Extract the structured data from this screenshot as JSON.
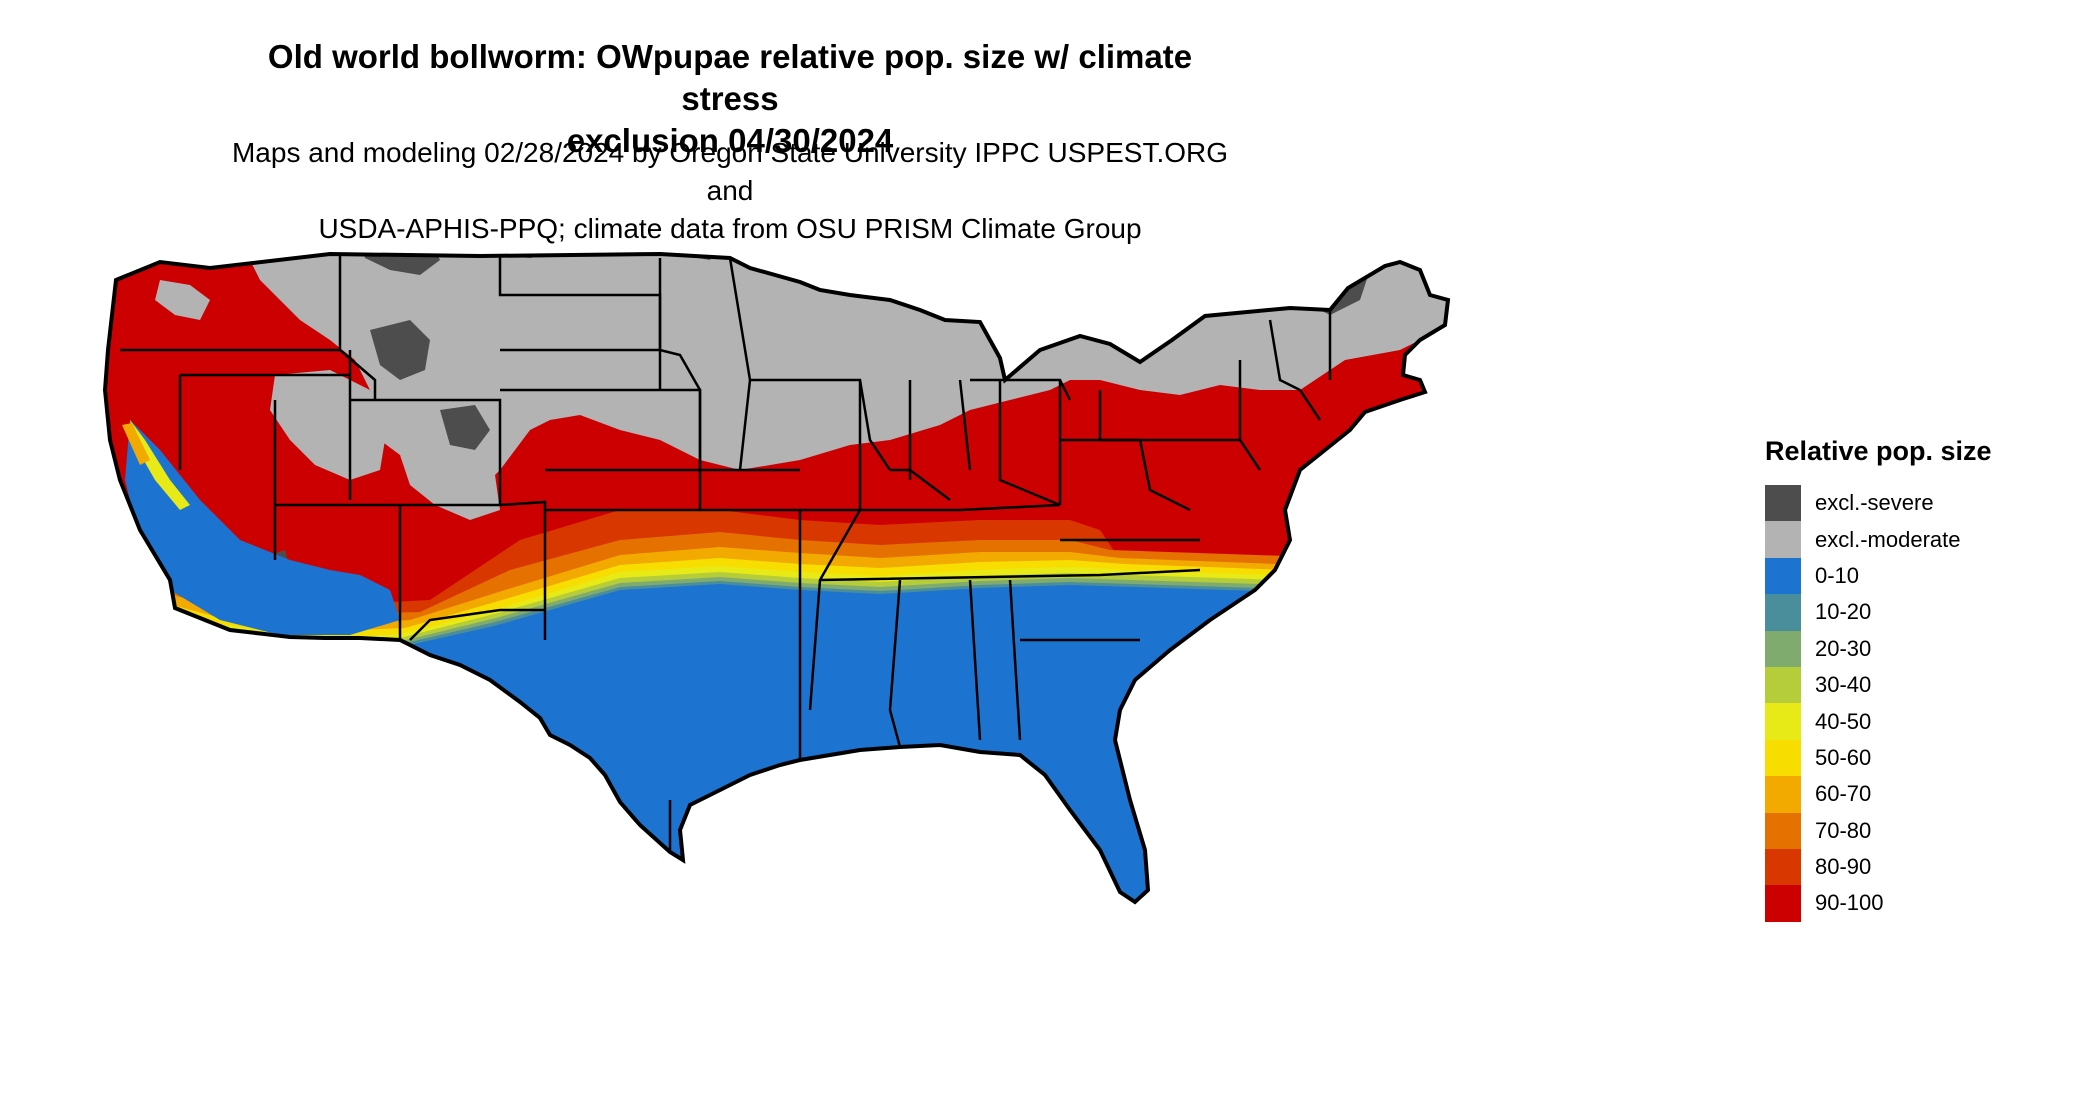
{
  "title": {
    "line1": "Old world bollworm: OWpupae relative pop. size w/ climate stress",
    "line2": "exclusion 04/30/2024"
  },
  "subtitle": {
    "line1": "Maps and modeling 02/28/2024 by Oregon State University IPPC USPEST.ORG and",
    "line2": "USDA-APHIS-PPQ; climate data from OSU PRISM Climate Group"
  },
  "legend": {
    "title": "Relative pop. size",
    "items": [
      {
        "label": "excl.-severe",
        "color": "#4d4d4d"
      },
      {
        "label": "excl.-moderate",
        "color": "#b3b3b3"
      },
      {
        "label": "0-10",
        "color": "#1c74d0"
      },
      {
        "label": "10-20",
        "color": "#4a8e9c"
      },
      {
        "label": "20-30",
        "color": "#7fac6e"
      },
      {
        "label": "30-40",
        "color": "#b5cc3b"
      },
      {
        "label": "40-50",
        "color": "#e7ea16"
      },
      {
        "label": "50-60",
        "color": "#f8de00"
      },
      {
        "label": "60-70",
        "color": "#f2a900"
      },
      {
        "label": "70-80",
        "color": "#e57100"
      },
      {
        "label": "80-90",
        "color": "#d83800"
      },
      {
        "label": "90-100",
        "color": "#cc0000"
      }
    ]
  }
}
